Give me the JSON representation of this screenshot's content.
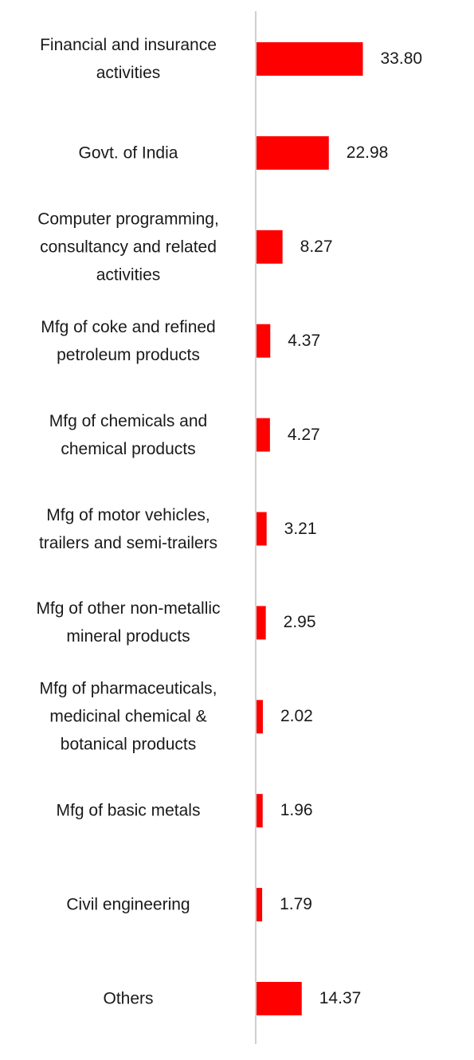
{
  "chart_data": {
    "type": "bar",
    "orientation": "horizontal",
    "categories": [
      "Financial and insurance\nactivities",
      "Govt. of India",
      "Computer programming,\nconsultancy and related\nactivities",
      "Mfg of coke and refined\npetroleum products",
      "Mfg of chemicals and\nchemical products",
      "Mfg of motor vehicles,\ntrailers and semi-trailers",
      "Mfg of other non-metallic\nmineral products",
      "Mfg of pharmaceuticals,\nmedicinal chemical &\nbotanical products",
      "Mfg of basic metals",
      "Civil engineering",
      "Others"
    ],
    "values": [
      33.8,
      22.98,
      8.27,
      4.37,
      4.27,
      3.21,
      2.95,
      2.02,
      1.96,
      1.79,
      14.37
    ],
    "value_labels": [
      "33.80",
      "22.98",
      "8.27",
      "4.37",
      "4.27",
      "3.21",
      "2.95",
      "2.02",
      "1.96",
      "1.79",
      "14.37"
    ],
    "xlim": [
      0,
      68
    ],
    "grid": false,
    "legend": "none",
    "colors": {
      "bar": "#ff0000",
      "axis": "#d0d0d0",
      "text": "#1a1a1a"
    }
  }
}
